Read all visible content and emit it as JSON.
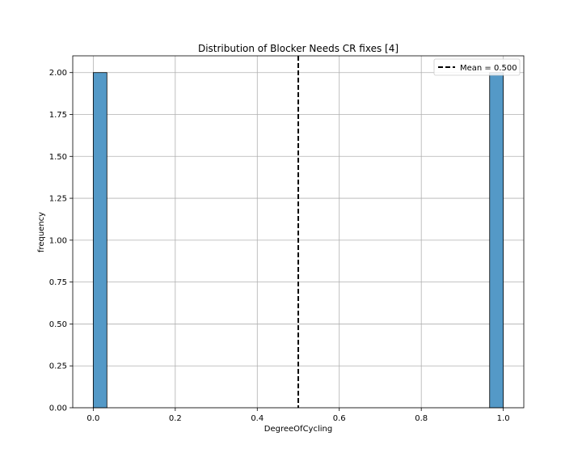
{
  "chart_data": {
    "type": "bar",
    "title": "Distribution of Blocker Needs CR fixes [4]",
    "xlabel": "DegreeOfCycling",
    "ylabel": "frequency",
    "xlim": [
      -0.05,
      1.05
    ],
    "ylim": [
      0,
      2.1
    ],
    "x_ticks": [
      "0.0",
      "0.2",
      "0.4",
      "0.6",
      "0.8",
      "1.0"
    ],
    "y_ticks": [
      "0.00",
      "0.25",
      "0.50",
      "0.75",
      "1.00",
      "1.25",
      "1.50",
      "1.75",
      "2.00"
    ],
    "grid": true,
    "legend_placement": "upper-right",
    "bins": [
      {
        "x_start": 0.0,
        "x_end": 0.0333,
        "value": 2
      },
      {
        "x_start": 0.9667,
        "x_end": 1.0,
        "value": 2
      }
    ],
    "mean_line": {
      "label": "Mean = 0.500",
      "x": 0.5,
      "style": "dashed",
      "color": "#000000"
    },
    "bar_color": "#5499c7",
    "edge_color": "#000000"
  }
}
